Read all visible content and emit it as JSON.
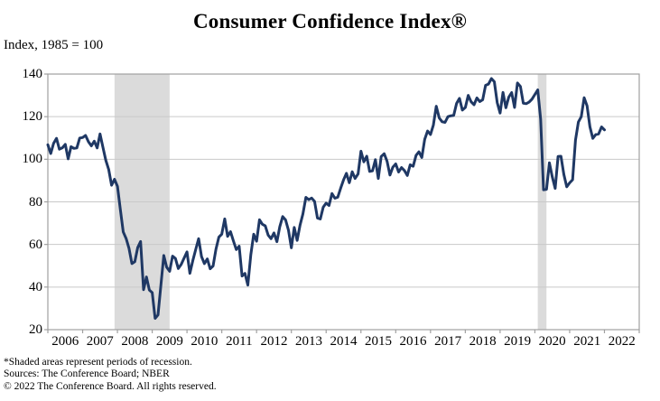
{
  "title": "Consumer Confidence Index®",
  "subtitle": "Index, 1985 = 100",
  "footnotes": [
    "*Shaded areas represent periods of recession.",
    "Sources: The Conference Board; NBER",
    "© 2022 The Conference Board. All rights reserved."
  ],
  "colors": {
    "line": "#1F3864",
    "recession_band": "#DBDBDB",
    "gridline": "#C9C9C9",
    "frame": "#A0A0A0",
    "text": "#000000"
  },
  "chart_data": {
    "type": "line",
    "title": "Consumer Confidence Index®",
    "ylabel": "Index, 1985 = 100",
    "ylim": [
      20,
      140
    ],
    "y_ticks": [
      20,
      40,
      60,
      80,
      100,
      120,
      140
    ],
    "x_years": [
      2006,
      2007,
      2008,
      2009,
      2010,
      2011,
      2012,
      2013,
      2014,
      2015,
      2016,
      2017,
      2018,
      2019,
      2020,
      2021,
      2022
    ],
    "x_axis_end_year": 2023,
    "grid": "horizontal",
    "legend": "none",
    "frequency": "monthly",
    "recessions": [
      {
        "label": "2008 recession",
        "start": [
          2007,
          12
        ],
        "end": [
          2009,
          6
        ]
      },
      {
        "label": "2020 recession",
        "start": [
          2020,
          2
        ],
        "end": [
          2020,
          4
        ]
      }
    ],
    "series": [
      {
        "name": "Consumer Confidence Index",
        "monthly": [
          {
            "year": 2006,
            "values": [
              106.8,
              102.7,
              107.5,
              109.8,
              104.7,
              105.4,
              107.0,
              100.2,
              105.9,
              105.1,
              105.3,
              110.0
            ]
          },
          {
            "year": 2007,
            "values": [
              110.2,
              111.2,
              108.2,
              106.3,
              108.5,
              105.3,
              111.9,
              105.6,
              99.5,
              95.2,
              87.8,
              90.6
            ]
          },
          {
            "year": 2008,
            "values": [
              87.3,
              76.4,
              65.9,
              62.8,
              58.1,
              51.0,
              51.9,
              58.5,
              61.4,
              38.8,
              44.7,
              38.6
            ]
          },
          {
            "year": 2009,
            "values": [
              37.4,
              25.3,
              26.9,
              40.8,
              54.8,
              49.3,
              47.4,
              54.5,
              53.4,
              48.7,
              50.6,
              53.6
            ]
          },
          {
            "year": 2010,
            "values": [
              56.5,
              46.4,
              52.3,
              57.7,
              62.7,
              54.3,
              51.0,
              53.2,
              48.6,
              49.9,
              57.8,
              63.4
            ]
          },
          {
            "year": 2011,
            "values": [
              64.8,
              72.0,
              63.8,
              66.0,
              61.7,
              57.6,
              59.2,
              45.2,
              46.4,
              40.9,
              55.2,
              64.8
            ]
          },
          {
            "year": 2012,
            "values": [
              61.5,
              71.6,
              69.5,
              68.7,
              64.4,
              62.7,
              65.4,
              61.3,
              68.4,
              73.1,
              71.5,
              66.7
            ]
          },
          {
            "year": 2013,
            "values": [
              58.4,
              68.0,
              61.9,
              69.0,
              74.3,
              82.1,
              81.0,
              81.8,
              80.2,
              72.4,
              72.0,
              77.5
            ]
          },
          {
            "year": 2014,
            "values": [
              79.4,
              78.3,
              83.9,
              81.7,
              82.2,
              86.4,
              90.3,
              93.4,
              89.0,
              94.1,
              91.0,
              93.1
            ]
          },
          {
            "year": 2015,
            "values": [
              103.8,
              98.8,
              101.4,
              94.3,
              94.6,
              99.8,
              91.0,
              101.3,
              102.6,
              99.1,
              92.6,
              96.3
            ]
          },
          {
            "year": 2016,
            "values": [
              97.8,
              94.0,
              96.1,
              94.7,
              92.4,
              97.4,
              96.7,
              101.8,
              103.5,
              100.8,
              109.4,
              113.3
            ]
          },
          {
            "year": 2017,
            "values": [
              111.6,
              116.1,
              124.9,
              119.4,
              117.6,
              117.3,
              120.0,
              120.4,
              120.6,
              126.2,
              128.6,
              123.1
            ]
          },
          {
            "year": 2018,
            "values": [
              124.3,
              130.0,
              127.0,
              125.6,
              128.8,
              127.1,
              127.9,
              134.7,
              135.3,
              137.9,
              136.4,
              126.6
            ]
          },
          {
            "year": 2019,
            "values": [
              121.7,
              131.4,
              124.2,
              129.2,
              131.3,
              124.3,
              135.8,
              134.2,
              126.3,
              126.1,
              126.8,
              128.2
            ]
          },
          {
            "year": 2020,
            "values": [
              130.4,
              132.6,
              118.8,
              85.7,
              85.9,
              98.3,
              91.7,
              86.3,
              101.3,
              101.4,
              92.9,
              87.1
            ]
          },
          {
            "year": 2021,
            "values": [
              88.9,
              90.4,
              109.0,
              117.5,
              120.0,
              128.9,
              125.1,
              115.2,
              109.8,
              111.6,
              111.9,
              115.2
            ]
          },
          {
            "year": 2022,
            "values": [
              113.8
            ]
          }
        ]
      }
    ]
  }
}
